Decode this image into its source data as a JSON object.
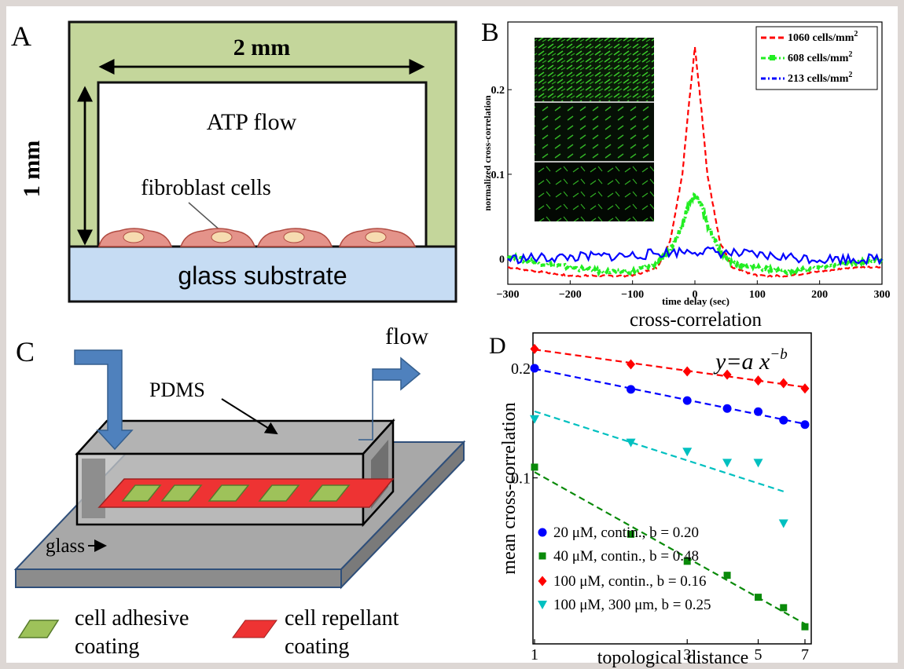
{
  "panelA": {
    "letter": "A",
    "width_label": "2 mm",
    "height_label": "1 mm",
    "flow_label": "ATP flow",
    "cells_label": "fibroblast cells",
    "substrate_label": "glass substrate"
  },
  "panelB": {
    "letter": "B",
    "subtitle": "cross-correlation",
    "chart_data": {
      "type": "line",
      "xlabel": "time delay (sec)",
      "ylabel": "normalized cross-correlation",
      "xlim": [
        -300,
        300
      ],
      "ylim": [
        -0.03,
        0.28
      ],
      "xticks": [
        "-300",
        "-200",
        "-100",
        "0",
        "100",
        "200",
        "300"
      ],
      "yticks": [
        "0",
        "0.1",
        "0.2"
      ],
      "legend_position": "top-right",
      "series": [
        {
          "name": "1060 cells/mm²",
          "color": "#ff0000",
          "style": "dashed",
          "x": [
            -300,
            -250,
            -200,
            -150,
            -100,
            -60,
            -40,
            -20,
            -10,
            0,
            10,
            20,
            40,
            60,
            100,
            150,
            200,
            250,
            300
          ],
          "y": [
            -0.01,
            -0.015,
            -0.02,
            -0.02,
            -0.02,
            -0.01,
            0.02,
            0.1,
            0.18,
            0.25,
            0.18,
            0.1,
            0.02,
            -0.01,
            -0.02,
            -0.02,
            -0.015,
            -0.01,
            -0.01
          ]
        },
        {
          "name": "608 cells/mm²",
          "color": "#22ee22",
          "style": "dash-dot",
          "x": [
            -300,
            -250,
            -200,
            -150,
            -100,
            -60,
            -40,
            -20,
            -10,
            0,
            10,
            20,
            40,
            60,
            100,
            150,
            200,
            250,
            300
          ],
          "y": [
            0.003,
            -0.005,
            -0.01,
            -0.015,
            -0.015,
            -0.005,
            0.01,
            0.04,
            0.065,
            0.075,
            0.065,
            0.04,
            0.01,
            -0.005,
            -0.01,
            -0.015,
            -0.01,
            -0.005,
            0
          ]
        },
        {
          "name": "213 cells/mm²",
          "color": "#0000ff",
          "style": "dash-dot",
          "x": [
            -300,
            -200,
            -100,
            0,
            100,
            200,
            300
          ],
          "y": [
            0,
            0.002,
            0.004,
            0.01,
            0.004,
            0,
            0
          ]
        }
      ]
    }
  },
  "panelC": {
    "letter": "C",
    "flow_label": "flow",
    "pdms_label": "PDMS",
    "glass_label": "glass",
    "legend_adhesive_1": "cell adhesive",
    "legend_adhesive_2": "coating",
    "legend_repellant_1": "cell repellant",
    "legend_repellant_2": "coating"
  },
  "panelD": {
    "letter": "D",
    "formula": "y = a x^-b",
    "chart_data": {
      "type": "scatter",
      "xlabel": "topological distance",
      "ylabel": "mean cross-correlation",
      "xscale": "log",
      "yscale": "log",
      "xlim": [
        1,
        7
      ],
      "ylim": [
        0.035,
        0.25
      ],
      "xticks": [
        "1",
        "3",
        "5",
        "7"
      ],
      "yticks": [
        "0.1",
        "0.2"
      ],
      "legend_position": "bottom-left",
      "series": [
        {
          "name": "20 μM, contin., b = 0.20",
          "color": "#0000ff",
          "marker": "circle",
          "x": [
            1,
            2,
            3,
            4,
            5,
            6,
            7
          ],
          "y": [
            0.2,
            0.175,
            0.163,
            0.155,
            0.152,
            0.144,
            0.14
          ]
        },
        {
          "name": "40 μM, contin., b = 0.48",
          "color": "#0a8a0a",
          "marker": "square",
          "x": [
            1,
            2,
            3,
            4,
            5,
            6,
            7
          ],
          "y": [
            0.107,
            0.07,
            0.059,
            0.054,
            0.047,
            0.044,
            0.039
          ]
        },
        {
          "name": "100 μM, contin., b = 0.16",
          "color": "#ff0000",
          "marker": "diamond",
          "x": [
            1,
            2,
            3,
            4,
            5,
            6,
            7
          ],
          "y": [
            0.226,
            0.205,
            0.196,
            0.192,
            0.185,
            0.182,
            0.176
          ]
        },
        {
          "name": "100 μM, 300 μm, b = 0.25",
          "color": "#00c0c0",
          "marker": "triangle",
          "x": [
            1,
            2,
            3,
            4,
            5,
            6
          ],
          "y": [
            0.145,
            0.125,
            0.118,
            0.11,
            0.11,
            0.075
          ]
        }
      ]
    }
  }
}
